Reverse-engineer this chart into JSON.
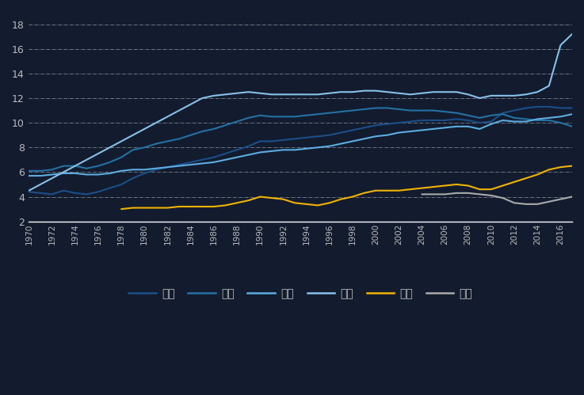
{
  "years": [
    1970,
    1971,
    1972,
    1973,
    1974,
    1975,
    1976,
    1977,
    1978,
    1979,
    1980,
    1981,
    1982,
    1983,
    1984,
    1985,
    1986,
    1987,
    1988,
    1989,
    1990,
    1991,
    1992,
    1993,
    1994,
    1995,
    1996,
    1997,
    1998,
    1999,
    2000,
    2001,
    2002,
    2003,
    2004,
    2005,
    2006,
    2007,
    2008,
    2009,
    2010,
    2011,
    2012,
    2013,
    2014,
    2015,
    2016,
    2017
  ],
  "德国": [
    4.4,
    4.3,
    4.2,
    4.5,
    4.3,
    4.2,
    4.4,
    4.7,
    5.0,
    5.5,
    5.9,
    6.2,
    6.4,
    6.6,
    6.8,
    7.0,
    7.2,
    7.5,
    7.8,
    8.1,
    8.5,
    8.5,
    8.6,
    8.7,
    8.8,
    8.9,
    9.0,
    9.2,
    9.4,
    9.6,
    9.8,
    9.9,
    10.0,
    10.1,
    10.2,
    10.2,
    10.2,
    10.3,
    10.2,
    10.0,
    10.1,
    10.8,
    11.0,
    11.2,
    11.3,
    11.3,
    11.2,
    11.2
  ],
  "日本": [
    6.1,
    6.1,
    6.2,
    6.5,
    6.5,
    6.3,
    6.5,
    6.8,
    7.2,
    7.8,
    8.0,
    8.3,
    8.5,
    8.7,
    9.0,
    9.3,
    9.5,
    9.8,
    10.1,
    10.4,
    10.6,
    10.5,
    10.5,
    10.5,
    10.6,
    10.7,
    10.8,
    10.9,
    11.0,
    11.1,
    11.2,
    11.2,
    11.1,
    11.0,
    11.0,
    11.0,
    10.9,
    10.8,
    10.6,
    10.4,
    10.6,
    10.7,
    10.4,
    10.3,
    10.2,
    10.2,
    10.0,
    9.7
  ],
  "英国": [
    5.7,
    5.7,
    5.8,
    5.9,
    5.9,
    5.8,
    5.8,
    5.9,
    6.1,
    6.2,
    6.2,
    6.3,
    6.4,
    6.5,
    6.6,
    6.7,
    6.8,
    7.0,
    7.2,
    7.4,
    7.6,
    7.7,
    7.8,
    7.8,
    7.9,
    8.0,
    8.1,
    8.3,
    8.5,
    8.7,
    8.9,
    9.0,
    9.2,
    9.3,
    9.4,
    9.5,
    9.6,
    9.7,
    9.7,
    9.5,
    9.9,
    10.2,
    10.1,
    10.1,
    10.3,
    10.4,
    10.5,
    10.7
  ],
  "美国": [
    4.5,
    5.0,
    5.5,
    6.0,
    6.5,
    7.0,
    7.5,
    8.0,
    8.5,
    9.0,
    9.5,
    10.0,
    10.5,
    11.0,
    11.5,
    12.0,
    12.2,
    12.3,
    12.4,
    12.5,
    12.4,
    12.3,
    12.3,
    12.3,
    12.3,
    12.3,
    12.4,
    12.5,
    12.5,
    12.6,
    12.6,
    12.5,
    12.4,
    12.3,
    12.4,
    12.5,
    12.5,
    12.5,
    12.3,
    12.0,
    12.2,
    12.2,
    12.2,
    12.3,
    12.5,
    13.0,
    16.3,
    17.2
  ],
  "中国": [
    null,
    null,
    null,
    null,
    null,
    null,
    null,
    null,
    3.0,
    3.1,
    3.1,
    3.1,
    3.1,
    3.2,
    3.2,
    3.2,
    3.2,
    3.3,
    3.5,
    3.7,
    4.0,
    3.9,
    3.8,
    3.5,
    3.4,
    3.3,
    3.5,
    3.8,
    4.0,
    4.3,
    4.5,
    4.5,
    4.5,
    4.6,
    4.7,
    4.8,
    4.9,
    5.0,
    4.9,
    4.6,
    4.6,
    4.9,
    5.2,
    5.5,
    5.8,
    6.2,
    6.4,
    6.5
  ],
  "印度": [
    null,
    null,
    null,
    null,
    null,
    null,
    null,
    null,
    null,
    null,
    null,
    null,
    null,
    null,
    null,
    null,
    null,
    null,
    null,
    null,
    null,
    null,
    null,
    null,
    null,
    null,
    null,
    null,
    null,
    null,
    null,
    null,
    null,
    null,
    4.2,
    4.2,
    4.2,
    4.3,
    4.3,
    4.2,
    4.1,
    3.9,
    3.5,
    3.4,
    3.4,
    3.6,
    3.8,
    4.0
  ],
  "colors": {
    "德国": "#1b4f8a",
    "日本": "#2471a3",
    "英国": "#5dade2",
    "美国": "#85c1e9",
    "中国": "#f0b400",
    "印度": "#aaaaaa"
  },
  "ylim": [
    2,
    19
  ],
  "yticks": [
    2,
    4,
    6,
    8,
    10,
    12,
    14,
    16,
    18
  ],
  "xlim": [
    1970,
    2017
  ],
  "bg_color": "#131b2e",
  "grid_color": "#ffffff",
  "text_color": "#bbbbbb",
  "line_width": 1.5
}
